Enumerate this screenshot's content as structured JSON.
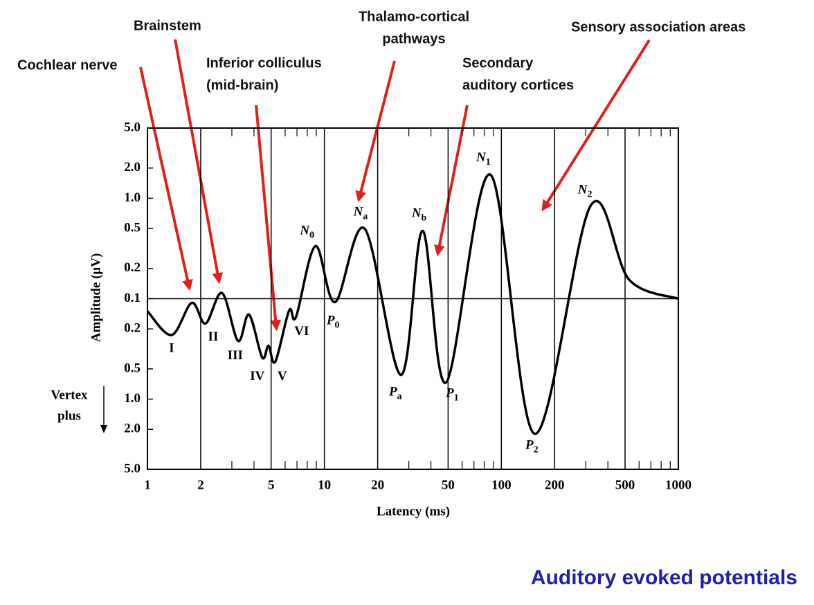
{
  "chart_data": {
    "type": "line",
    "x_label": "Latency (ms)",
    "y_label": "Amplitude (μV)",
    "vertex_label": [
      "Vertex",
      "plus"
    ],
    "caption": "Auditory evoked potentials",
    "xscale": "log",
    "yscale": "bipolar-log",
    "xlim": [
      1,
      1000
    ],
    "xticks": [
      1,
      2,
      5,
      10,
      20,
      50,
      100,
      200,
      500,
      1000
    ],
    "xminorticks": [
      3,
      4,
      6,
      7,
      8,
      9,
      30,
      40,
      60,
      70,
      80,
      90,
      300,
      400,
      600,
      700,
      800,
      900
    ],
    "ylim": [
      -5,
      5
    ],
    "yticks": [
      {
        "value": 5,
        "label": "5.0"
      },
      {
        "value": 2,
        "label": "2.0"
      },
      {
        "value": 1,
        "label": "1.0"
      },
      0.5,
      0.2,
      0.1,
      {
        "value": -0.2,
        "label": "0.2"
      },
      {
        "value": -0.5,
        "label": "0.5"
      },
      {
        "value": -1,
        "label": "1.0"
      },
      {
        "value": -2,
        "label": "2.0"
      },
      {
        "value": -5,
        "label": "5.0"
      }
    ],
    "grid": true,
    "color": "#000000",
    "x": [
      1,
      1.37,
      1.78,
      2.13,
      2.64,
      3.25,
      3.75,
      4.45,
      4.83,
      5.28,
      6.32,
      6.92,
      8.9,
      11.5,
      16.9,
      27.1,
      35.9,
      48.7,
      86.6,
      154,
      319,
      528,
      1000
    ],
    "values": [
      -0.133,
      -0.23,
      -0.11,
      -0.177,
      0.114,
      -0.263,
      -0.144,
      -0.385,
      -0.294,
      -0.424,
      -0.131,
      -0.151,
      0.334,
      -0.108,
      0.497,
      -0.574,
      0.474,
      -0.683,
      1.72,
      -2.21,
      0.84,
      0.154,
      0.1
    ],
    "point_labels": [
      null,
      "I",
      null,
      "II",
      null,
      "III",
      null,
      "IV",
      null,
      "V",
      null,
      "VI",
      {
        "text": "N",
        "sub": "0"
      },
      {
        "text": "P",
        "sub": "0"
      },
      {
        "text": "N",
        "sub": "a"
      },
      {
        "text": "P",
        "sub": "a"
      },
      {
        "text": "N",
        "sub": "b"
      },
      {
        "text": "P",
        "sub": "1"
      },
      {
        "text": "N",
        "sub": "1"
      },
      {
        "text": "P",
        "sub": "2"
      },
      {
        "text": "N",
        "sub": "2"
      },
      null,
      null
    ],
    "annotations": [
      [
        "Cochlear nerve"
      ],
      [
        "Brainstem"
      ],
      [
        "Inferior colliculus",
        "(mid-brain)"
      ],
      [
        "Thalamo-cortical",
        "pathways"
      ],
      [
        "Secondary",
        "auditory cortices"
      ],
      [
        "Sensory association areas"
      ]
    ]
  }
}
